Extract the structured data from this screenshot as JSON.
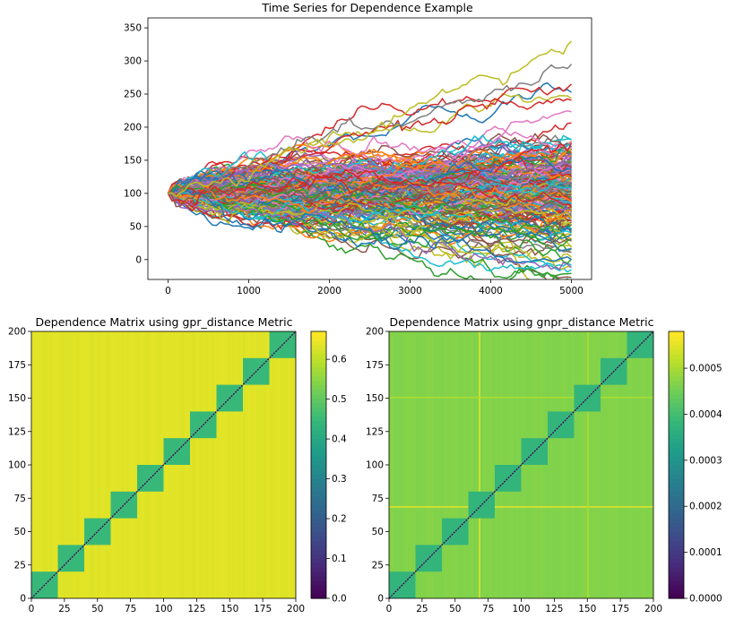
{
  "chart_data": [
    {
      "type": "line",
      "title": "Time Series for Dependence Example",
      "xlabel": "",
      "ylabel": "",
      "xlim": [
        -250,
        5250
      ],
      "ylim": [
        -30,
        365
      ],
      "xticks": [
        0,
        1000,
        2000,
        3000,
        4000,
        5000
      ],
      "yticks": [
        0,
        50,
        100,
        150,
        200,
        250,
        300,
        350
      ],
      "grid": false,
      "n_series": 200,
      "series_count_displayed": 200,
      "start_value": 100,
      "x_range": [
        0,
        5000
      ],
      "notable_series": [
        {
          "color": "#bcbd22",
          "end_value": 330,
          "peak_value": 355
        },
        {
          "color": "#7f7f7f",
          "end_value": 295,
          "peak_value": 335
        },
        {
          "color": "#d62728",
          "end_value": 265,
          "peak_value": 280
        },
        {
          "color": "#1f77b4",
          "end_value": 0,
          "min_value": -25
        }
      ],
      "colors": [
        "#1f77b4",
        "#ff7f0e",
        "#2ca02c",
        "#d62728",
        "#9467bd",
        "#8c564b",
        "#e377c2",
        "#7f7f7f",
        "#bcbd22",
        "#17becf"
      ]
    },
    {
      "type": "heatmap",
      "title": "Dependence Matrix using gpr_distance Metric",
      "xlabel": "",
      "ylabel": "",
      "size": 200,
      "block_size": 20,
      "xlim": [
        0,
        200
      ],
      "ylim": [
        0,
        200
      ],
      "xticks": [
        0,
        25,
        50,
        75,
        100,
        125,
        150,
        175,
        200
      ],
      "yticks": [
        0,
        25,
        50,
        75,
        100,
        125,
        150,
        175,
        200
      ],
      "colormap": "viridis",
      "vmin": 0,
      "vmax": 0.67,
      "within_block_value": 0.45,
      "between_block_value": 0.64,
      "diagonal_value": 0,
      "colorbar_ticks": [
        "0.0",
        "0.1",
        "0.2",
        "0.3",
        "0.4",
        "0.5",
        "0.6"
      ],
      "colorbar_values": [
        0,
        0.1,
        0.2,
        0.3,
        0.4,
        0.5,
        0.6
      ]
    },
    {
      "type": "heatmap",
      "title": "Dependence Matrix using gnpr_distance Metric",
      "xlabel": "",
      "ylabel": "",
      "size": 200,
      "block_size": 20,
      "xlim": [
        0,
        200
      ],
      "ylim": [
        0,
        200
      ],
      "xticks": [
        0,
        25,
        50,
        75,
        100,
        125,
        150,
        175,
        200
      ],
      "yticks": [
        0,
        25,
        50,
        75,
        100,
        125,
        150,
        175,
        200
      ],
      "colormap": "viridis",
      "vmin": 0,
      "vmax": 0.00058,
      "within_block_value": 0.00038,
      "between_block_value": 0.00047,
      "diagonal_value": 0,
      "highlight_lines": [
        {
          "index": 68,
          "value": 0.00056
        },
        {
          "index": 150,
          "value": 0.00051
        }
      ],
      "colorbar_ticks": [
        "0.0000",
        "0.0001",
        "0.0002",
        "0.0003",
        "0.0004",
        "0.0005"
      ],
      "colorbar_values": [
        0,
        0.0001,
        0.0002,
        0.0003,
        0.0004,
        0.0005
      ]
    }
  ]
}
